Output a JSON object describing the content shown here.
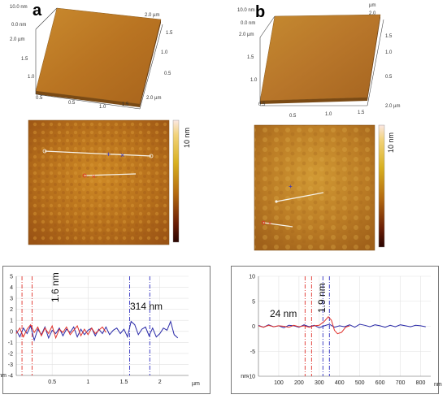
{
  "panels": {
    "a": {
      "letter": "a",
      "topo3d": {
        "z_label": "10.0 nm",
        "y_zero": "0.0 nm",
        "top_right": "2.0 µm",
        "y_ticks": [
          "2.0 µm",
          "1.5",
          "1.0",
          "0.5"
        ],
        "right_ticks": [
          "1.5",
          "1.0",
          "0.5"
        ],
        "x_ticks": [
          "0.5",
          "1.0",
          "1.5",
          "2.0 µm"
        ]
      },
      "afm_scale_label": "10 nm",
      "marker_label": "1.6 nm",
      "marker_label2": "314 nm"
    },
    "b": {
      "letter": "b",
      "topo3d": {
        "z_label": "10.0 nm",
        "y_zero": "0.0 nm",
        "top_unit": "µm",
        "top_right": "2.0",
        "y_ticks": [
          "2.0 µm",
          "1.5",
          "1.0",
          "0.5"
        ],
        "right_ticks": [
          "1.5",
          "1.0",
          "0.5"
        ],
        "x_ticks": [
          "0.5",
          "1.0",
          "1.5",
          "2.0 µm"
        ]
      },
      "afm_scale_label": "10 nm",
      "marker_label": "1.9 nm",
      "marker_label2": "24 nm"
    }
  },
  "chart_data": [
    {
      "type": "line",
      "panel": "a",
      "xlabel": "µm",
      "ylabel": "nm",
      "xlim": [
        0,
        2.4
      ],
      "ylim": [
        -4,
        5
      ],
      "x_ticks": [
        0.5,
        1,
        1.5,
        2
      ],
      "x_tick_labels": [
        "0.5",
        "1",
        "1.5",
        "2"
      ],
      "y_ticks": [
        5,
        4,
        3,
        2,
        1,
        0,
        -1,
        -2,
        -3,
        -4
      ],
      "y_tick_labels": [
        "5",
        "4",
        "3",
        "2",
        "1",
        "0",
        "-1",
        "-2",
        "-3",
        "-4"
      ],
      "markers_x": [
        0.08,
        0.22,
        1.58,
        1.86
      ],
      "series": [
        {
          "color": "#2a2aa8",
          "x": [
            0,
            0.05,
            0.1,
            0.15,
            0.2,
            0.25,
            0.3,
            0.35,
            0.4,
            0.45,
            0.5,
            0.55,
            0.6,
            0.65,
            0.7,
            0.75,
            0.8,
            0.85,
            0.9,
            0.95,
            1.0,
            1.05,
            1.1,
            1.15,
            1.2,
            1.25,
            1.3,
            1.35,
            1.4,
            1.45,
            1.5,
            1.55,
            1.6,
            1.65,
            1.7,
            1.75,
            1.8,
            1.85,
            1.9,
            1.95,
            2.0,
            2.05,
            2.1,
            2.15,
            2.2,
            2.25
          ],
          "y": [
            0.1,
            -0.5,
            0.3,
            -0.2,
            0.5,
            -0.8,
            0.2,
            -0.3,
            0.4,
            -0.6,
            0.1,
            -0.2,
            0.3,
            -0.4,
            0.2,
            -0.1,
            0.4,
            -0.5,
            0.2,
            -0.3,
            0.1,
            0.3,
            -0.4,
            0.2,
            -0.2,
            0.4,
            -0.3,
            0.1,
            0.3,
            -0.2,
            0.2,
            -0.5,
            0.9,
            0.6,
            -0.3,
            0.2,
            0.4,
            -0.4,
            0.3,
            -0.5,
            -0.2,
            0.3,
            0.1,
            0.9,
            -0.3,
            -0.6
          ]
        },
        {
          "color": "#e0302a",
          "x": [
            0,
            0.05,
            0.1,
            0.15,
            0.2,
            0.25,
            0.3,
            0.35,
            0.4,
            0.45,
            0.5,
            0.55,
            0.6,
            0.65,
            0.7,
            0.75,
            0.8,
            0.85,
            0.9,
            0.95,
            1.0,
            1.05,
            1.1,
            1.15,
            1.2,
            1.25
          ],
          "y": [
            -0.2,
            0.3,
            -0.5,
            0.2,
            0.6,
            -0.1,
            0.4,
            -0.4,
            0.3,
            -0.2,
            0.5,
            -0.6,
            0.2,
            -0.1,
            0.4,
            -0.3,
            0.1,
            0.5,
            -0.4,
            0.2,
            -0.3,
            0.3,
            -0.2,
            0.1,
            0.4,
            -0.1
          ]
        }
      ]
    },
    {
      "type": "line",
      "panel": "b",
      "xlabel": "nm",
      "ylabel": "nm",
      "xlim": [
        0,
        850
      ],
      "ylim": [
        -10,
        10
      ],
      "x_ticks": [
        100,
        200,
        300,
        400,
        500,
        600,
        700,
        800
      ],
      "x_tick_labels": [
        "100",
        "200",
        "300",
        "400",
        "500",
        "600",
        "700",
        "800"
      ],
      "y_ticks": [
        10,
        5,
        0,
        -5,
        -10
      ],
      "y_tick_labels": [
        "10",
        "5",
        "0",
        "-5",
        "-10"
      ],
      "markers_x": [
        230,
        262,
        318,
        350
      ],
      "series": [
        {
          "color": "#2a2aa8",
          "x": [
            0,
            25,
            50,
            75,
            100,
            125,
            150,
            175,
            200,
            225,
            250,
            275,
            300,
            325,
            350,
            375,
            400,
            425,
            450,
            475,
            500,
            525,
            550,
            575,
            600,
            625,
            650,
            675,
            700,
            725,
            750,
            775,
            800,
            825
          ],
          "y": [
            0.2,
            -0.2,
            0.3,
            -0.1,
            0.1,
            -0.3,
            0.2,
            0.1,
            -0.2,
            0.3,
            -0.1,
            0.2,
            -0.3,
            0.1,
            0.4,
            -0.2,
            0.1,
            -0.1,
            0.3,
            -0.2,
            0.4,
            0.2,
            -0.1,
            0.3,
            0.1,
            -0.2,
            0.2,
            -0.1,
            0.3,
            0.1,
            -0.1,
            0.2,
            0.1,
            -0.1
          ]
        },
        {
          "color": "#e0302a",
          "x": [
            0,
            25,
            50,
            75,
            100,
            125,
            150,
            175,
            200,
            225,
            250,
            275,
            300,
            325,
            345,
            360,
            375,
            390,
            410,
            430,
            450
          ],
          "y": [
            0.1,
            -0.2,
            0.2,
            -0.1,
            0.1,
            0.0,
            -0.2,
            0.2,
            -0.1,
            0.1,
            -0.2,
            0.1,
            0.2,
            1.0,
            1.9,
            1.2,
            -0.8,
            -1.5,
            -1.2,
            -0.2,
            0.1
          ]
        }
      ]
    }
  ]
}
